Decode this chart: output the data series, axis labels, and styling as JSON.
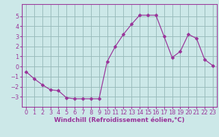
{
  "x": [
    0,
    1,
    2,
    3,
    4,
    5,
    6,
    7,
    8,
    9,
    10,
    11,
    12,
    13,
    14,
    15,
    16,
    17,
    18,
    19,
    20,
    21,
    22,
    23
  ],
  "y": [
    -0.5,
    -1.2,
    -1.8,
    -2.3,
    -2.4,
    -3.1,
    -3.2,
    -3.2,
    -3.2,
    -3.2,
    0.5,
    2.0,
    3.2,
    4.2,
    5.1,
    5.1,
    5.1,
    3.0,
    0.9,
    1.5,
    3.2,
    2.8,
    0.7,
    0.1
  ],
  "line_color": "#993399",
  "marker": "D",
  "marker_size": 2.5,
  "bg_color": "#cce8e8",
  "grid_color": "#99bbbb",
  "xlabel": "Windchill (Refroidissement éolien,°C)",
  "xlim": [
    -0.5,
    23.5
  ],
  "ylim": [
    -4.0,
    6.2
  ],
  "yticks": [
    -3,
    -2,
    -1,
    0,
    1,
    2,
    3,
    4,
    5
  ],
  "xticks": [
    0,
    1,
    2,
    3,
    4,
    5,
    6,
    7,
    8,
    9,
    10,
    11,
    12,
    13,
    14,
    15,
    16,
    17,
    18,
    19,
    20,
    21,
    22,
    23
  ],
  "tick_color": "#993399",
  "spine_color": "#993399",
  "tick_fontsize": 6.0,
  "xlabel_fontsize": 6.5
}
